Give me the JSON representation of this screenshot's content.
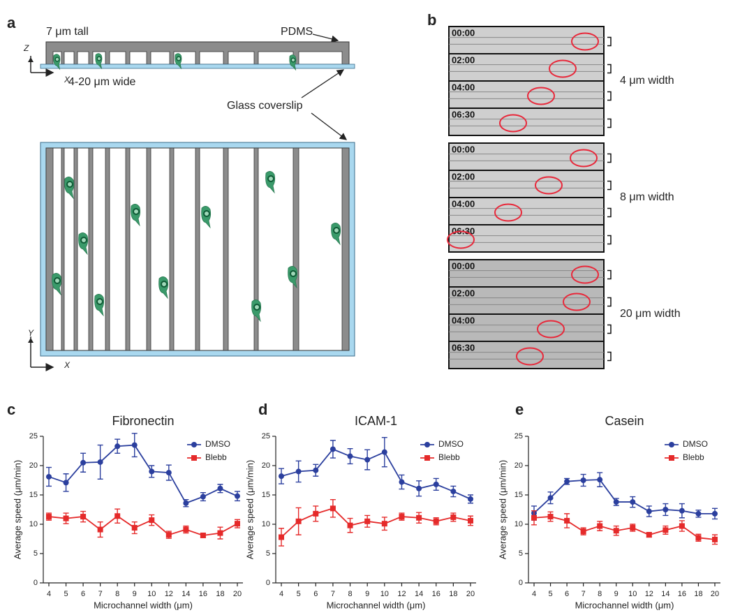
{
  "panel_labels": [
    "a",
    "b",
    "c",
    "d",
    "e"
  ],
  "diagram": {
    "height_label": "7 μm tall",
    "width_label": "4-20 μm wide",
    "pdms": "PDMS",
    "glass": "Glass coverslip",
    "axis_z": "Z",
    "axis_x": "X",
    "axis_y": "Y"
  },
  "timelapse": {
    "times": [
      "00:00",
      "02:00",
      "04:00",
      "06:30"
    ],
    "widths": [
      "4 μm width",
      "8 μm width",
      "20 μm width"
    ]
  },
  "chart_data": [
    {
      "type": "line",
      "title": "Fibronectin",
      "x_label": "Microchannel width (μm)",
      "y_label": "Average speed (μm/min)",
      "categories": [
        4,
        5,
        6,
        7,
        8,
        9,
        10,
        12,
        14,
        16,
        18,
        20
      ],
      "ylim": [
        0,
        25
      ],
      "yticks": [
        0,
        5,
        10,
        15,
        20,
        25
      ],
      "legend": "upper right",
      "series": [
        {
          "name": "DMSO",
          "color": "#2b3f9e",
          "marker": "circle",
          "values": [
            18.1,
            17.1,
            20.5,
            20.6,
            23.3,
            23.5,
            19.0,
            18.8,
            13.6,
            14.7,
            16.1,
            14.8
          ],
          "errors": [
            1.6,
            1.5,
            1.6,
            2.9,
            1.2,
            2.0,
            1.0,
            1.3,
            0.6,
            0.7,
            0.7,
            0.8
          ]
        },
        {
          "name": "Blebb",
          "color": "#e52a2a",
          "marker": "square",
          "values": [
            11.3,
            11.0,
            11.3,
            9.1,
            11.4,
            9.4,
            10.7,
            8.2,
            9.1,
            8.1,
            8.5,
            10.1
          ],
          "errors": [
            0.6,
            0.9,
            0.9,
            1.3,
            1.2,
            1.0,
            0.9,
            0.6,
            0.6,
            0.3,
            1.0,
            0.7
          ]
        }
      ]
    },
    {
      "type": "line",
      "title": "ICAM-1",
      "x_label": "Microchannel width (μm)",
      "y_label": "Average speed (μm/min)",
      "categories": [
        4,
        5,
        6,
        7,
        8,
        9,
        10,
        12,
        14,
        16,
        18,
        20
      ],
      "ylim": [
        0,
        25
      ],
      "yticks": [
        0,
        5,
        10,
        15,
        20,
        25
      ],
      "legend": "upper right",
      "series": [
        {
          "name": "DMSO",
          "color": "#2b3f9e",
          "marker": "circle",
          "values": [
            18.2,
            19.0,
            19.2,
            22.8,
            21.6,
            21.0,
            22.3,
            17.2,
            16.1,
            16.8,
            15.6,
            14.3
          ],
          "errors": [
            1.3,
            1.8,
            1.0,
            1.5,
            1.3,
            1.7,
            2.5,
            1.2,
            1.3,
            1.0,
            0.9,
            0.7
          ]
        },
        {
          "name": "Blebb",
          "color": "#e52a2a",
          "marker": "square",
          "values": [
            7.8,
            10.5,
            11.8,
            12.7,
            9.8,
            10.5,
            10.1,
            11.3,
            11.1,
            10.5,
            11.2,
            10.6
          ],
          "errors": [
            1.5,
            2.3,
            1.3,
            1.5,
            1.2,
            1.0,
            1.1,
            0.6,
            0.9,
            0.6,
            0.7,
            0.8
          ]
        }
      ]
    },
    {
      "type": "line",
      "title": "Casein",
      "x_label": "Microchannel width (μm)",
      "y_label": "Average speed (μm/min)",
      "categories": [
        4,
        5,
        6,
        7,
        8,
        9,
        10,
        12,
        14,
        16,
        18,
        20
      ],
      "ylim": [
        0,
        25
      ],
      "yticks": [
        0,
        5,
        10,
        15,
        20,
        25
      ],
      "legend": "upper right",
      "series": [
        {
          "name": "DMSO",
          "color": "#2b3f9e",
          "marker": "circle",
          "values": [
            11.9,
            14.5,
            17.3,
            17.5,
            17.6,
            13.8,
            13.8,
            12.2,
            12.5,
            12.3,
            11.8,
            11.8
          ],
          "errors": [
            1.2,
            1.0,
            0.5,
            1.0,
            1.2,
            0.6,
            0.9,
            0.9,
            1.0,
            1.2,
            0.6,
            0.9
          ]
        },
        {
          "name": "Blebb",
          "color": "#e52a2a",
          "marker": "square",
          "values": [
            11.1,
            11.3,
            10.6,
            8.8,
            9.7,
            8.9,
            9.4,
            8.2,
            9.0,
            9.7,
            7.7,
            7.4
          ],
          "errors": [
            1.2,
            0.8,
            1.2,
            0.6,
            0.8,
            0.8,
            0.6,
            0.4,
            0.7,
            0.9,
            0.6,
            0.8
          ]
        }
      ]
    }
  ]
}
